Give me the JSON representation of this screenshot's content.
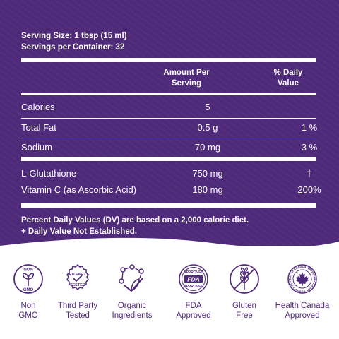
{
  "serving": {
    "size": "Serving Size: 1 tbsp (15 ml)",
    "per_container": "Servings per Container: 32"
  },
  "columns": {
    "amount_line1": "Amount Per",
    "amount_line2": "Serving",
    "daily_line1": "% Daily",
    "daily_line2": "Value"
  },
  "rows": [
    {
      "name": "Calories",
      "amount": "5",
      "daily": ""
    },
    {
      "name": "Total Fat",
      "amount": "0.5 g",
      "daily": "1 %"
    },
    {
      "name": "Sodium",
      "amount": "70 mg",
      "daily": "3 %"
    }
  ],
  "extra_rows": [
    {
      "name": "L-Glutathione",
      "amount": "750 mg",
      "daily": "†"
    },
    {
      "name": "Vitamin C (as Ascorbic Acid)",
      "amount": "180 mg",
      "daily": "200%"
    }
  ],
  "footnote": {
    "line1": "Percent Daily Values (DV) are based on a 2,000 calorie diet.",
    "line2": "+ Daily Value Not Established."
  },
  "badges": [
    {
      "icon": "non-gmo-icon",
      "line1": "Non",
      "line2": "GMO",
      "top_text": "NON",
      "bottom_text": "GMO"
    },
    {
      "icon": "third-party-tested-icon",
      "line1": "Third Party",
      "line2": "Tested",
      "top_text": "3RD PARTY",
      "bottom_text": "TESTED"
    },
    {
      "icon": "organic-ingredients-icon",
      "line1": "Organic",
      "line2": "Ingredients"
    },
    {
      "icon": "fda-approved-icon",
      "line1": "FDA",
      "line2": "Approved",
      "top_text": "APPROVED",
      "mid_text": "FDA",
      "bottom_text": "APPROVED"
    },
    {
      "icon": "gluten-free-icon",
      "line1": "Gluten",
      "line2": "Free"
    },
    {
      "icon": "health-canada-icon",
      "line1": "Health Canada",
      "line2": "Approved",
      "top_text": "HEALTH CANADA APPROVED",
      "bottom_text": "SANTÉ CANADA APPROUVÉ"
    }
  ],
  "colors": {
    "purple": "#4f2a7a",
    "white": "#ffffff"
  }
}
